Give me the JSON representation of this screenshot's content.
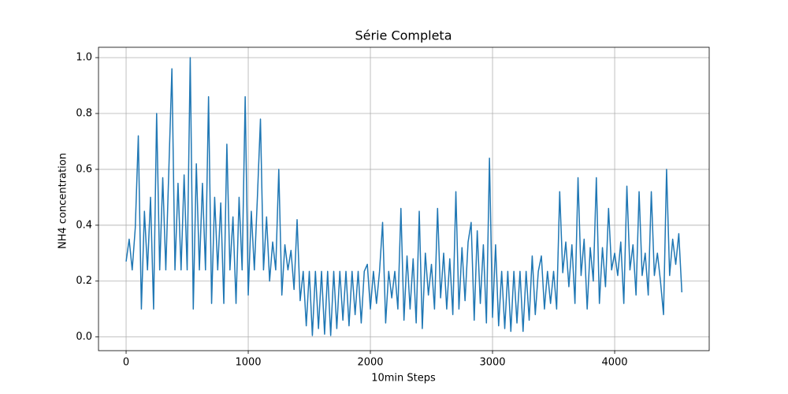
{
  "chart_data": {
    "type": "line",
    "title": "Série Completa",
    "x_label": "10min Steps",
    "y_label": "NH4 concentration",
    "x": [
      0,
      25,
      50,
      75,
      100,
      125,
      150,
      175,
      200,
      225,
      250,
      275,
      300,
      325,
      350,
      375,
      400,
      425,
      450,
      475,
      500,
      525,
      550,
      575,
      600,
      625,
      650,
      675,
      700,
      725,
      750,
      775,
      800,
      825,
      850,
      875,
      900,
      925,
      950,
      975,
      1000,
      1025,
      1050,
      1075,
      1100,
      1125,
      1150,
      1175,
      1200,
      1225,
      1250,
      1275,
      1300,
      1325,
      1350,
      1375,
      1400,
      1425,
      1450,
      1475,
      1500,
      1525,
      1550,
      1575,
      1600,
      1625,
      1650,
      1675,
      1700,
      1725,
      1750,
      1775,
      1800,
      1825,
      1850,
      1875,
      1900,
      1925,
      1950,
      1975,
      2000,
      2025,
      2050,
      2075,
      2100,
      2125,
      2150,
      2175,
      2200,
      2225,
      2250,
      2275,
      2300,
      2325,
      2350,
      2375,
      2400,
      2425,
      2450,
      2475,
      2500,
      2525,
      2550,
      2575,
      2600,
      2625,
      2650,
      2675,
      2700,
      2725,
      2750,
      2775,
      2800,
      2825,
      2850,
      2875,
      2900,
      2925,
      2950,
      2975,
      3000,
      3025,
      3050,
      3075,
      3100,
      3125,
      3150,
      3175,
      3200,
      3225,
      3250,
      3275,
      3300,
      3325,
      3350,
      3375,
      3400,
      3425,
      3450,
      3475,
      3500,
      3525,
      3550,
      3575,
      3600,
      3625,
      3650,
      3675,
      3700,
      3725,
      3750,
      3775,
      3800,
      3825,
      3850,
      3875,
      3900,
      3925,
      3950,
      3975,
      4000,
      4025,
      4050,
      4075,
      4100,
      4125,
      4150,
      4175,
      4200,
      4225,
      4250,
      4275,
      4300,
      4325,
      4350,
      4375,
      4400,
      4425,
      4450,
      4475,
      4500,
      4525,
      4550
    ],
    "values": [
      0.27,
      0.35,
      0.24,
      0.39,
      0.72,
      0.1,
      0.45,
      0.24,
      0.5,
      0.1,
      0.8,
      0.24,
      0.57,
      0.24,
      0.6,
      0.96,
      0.24,
      0.55,
      0.24,
      0.58,
      0.24,
      1.0,
      0.1,
      0.62,
      0.24,
      0.55,
      0.24,
      0.86,
      0.12,
      0.5,
      0.24,
      0.48,
      0.12,
      0.69,
      0.24,
      0.43,
      0.12,
      0.5,
      0.24,
      0.86,
      0.15,
      0.45,
      0.24,
      0.5,
      0.78,
      0.24,
      0.43,
      0.2,
      0.34,
      0.24,
      0.6,
      0.15,
      0.33,
      0.24,
      0.31,
      0.17,
      0.42,
      0.13,
      0.235,
      0.04,
      0.235,
      0.005,
      0.235,
      0.03,
      0.235,
      0.01,
      0.235,
      0.005,
      0.235,
      0.03,
      0.235,
      0.06,
      0.235,
      0.04,
      0.235,
      0.08,
      0.235,
      0.05,
      0.235,
      0.26,
      0.1,
      0.235,
      0.12,
      0.235,
      0.41,
      0.05,
      0.235,
      0.14,
      0.235,
      0.1,
      0.46,
      0.06,
      0.29,
      0.1,
      0.28,
      0.05,
      0.45,
      0.03,
      0.3,
      0.15,
      0.26,
      0.1,
      0.46,
      0.14,
      0.3,
      0.1,
      0.28,
      0.08,
      0.52,
      0.1,
      0.32,
      0.13,
      0.34,
      0.41,
      0.06,
      0.38,
      0.12,
      0.33,
      0.05,
      0.64,
      0.07,
      0.33,
      0.04,
      0.235,
      0.03,
      0.235,
      0.02,
      0.235,
      0.05,
      0.235,
      0.02,
      0.235,
      0.06,
      0.29,
      0.08,
      0.235,
      0.29,
      0.1,
      0.235,
      0.12,
      0.235,
      0.1,
      0.52,
      0.23,
      0.34,
      0.18,
      0.33,
      0.12,
      0.57,
      0.22,
      0.35,
      0.1,
      0.32,
      0.2,
      0.57,
      0.12,
      0.32,
      0.18,
      0.46,
      0.24,
      0.3,
      0.22,
      0.34,
      0.12,
      0.54,
      0.24,
      0.33,
      0.15,
      0.52,
      0.22,
      0.3,
      0.15,
      0.52,
      0.22,
      0.3,
      0.2,
      0.08,
      0.6,
      0.22,
      0.35,
      0.26,
      0.37,
      0.16
    ],
    "color": "#1f77b4",
    "xlim": [
      -226,
      4774
    ],
    "xticks": [
      0,
      1000,
      2000,
      3000,
      4000
    ],
    "ylim": [
      -0.049,
      1.037
    ],
    "yticks": [
      {
        "value": 0,
        "label": "0.0"
      },
      0.2,
      0.4,
      0.6,
      0.8,
      {
        "value": 1,
        "label": "1.0"
      }
    ],
    "grid": true
  }
}
